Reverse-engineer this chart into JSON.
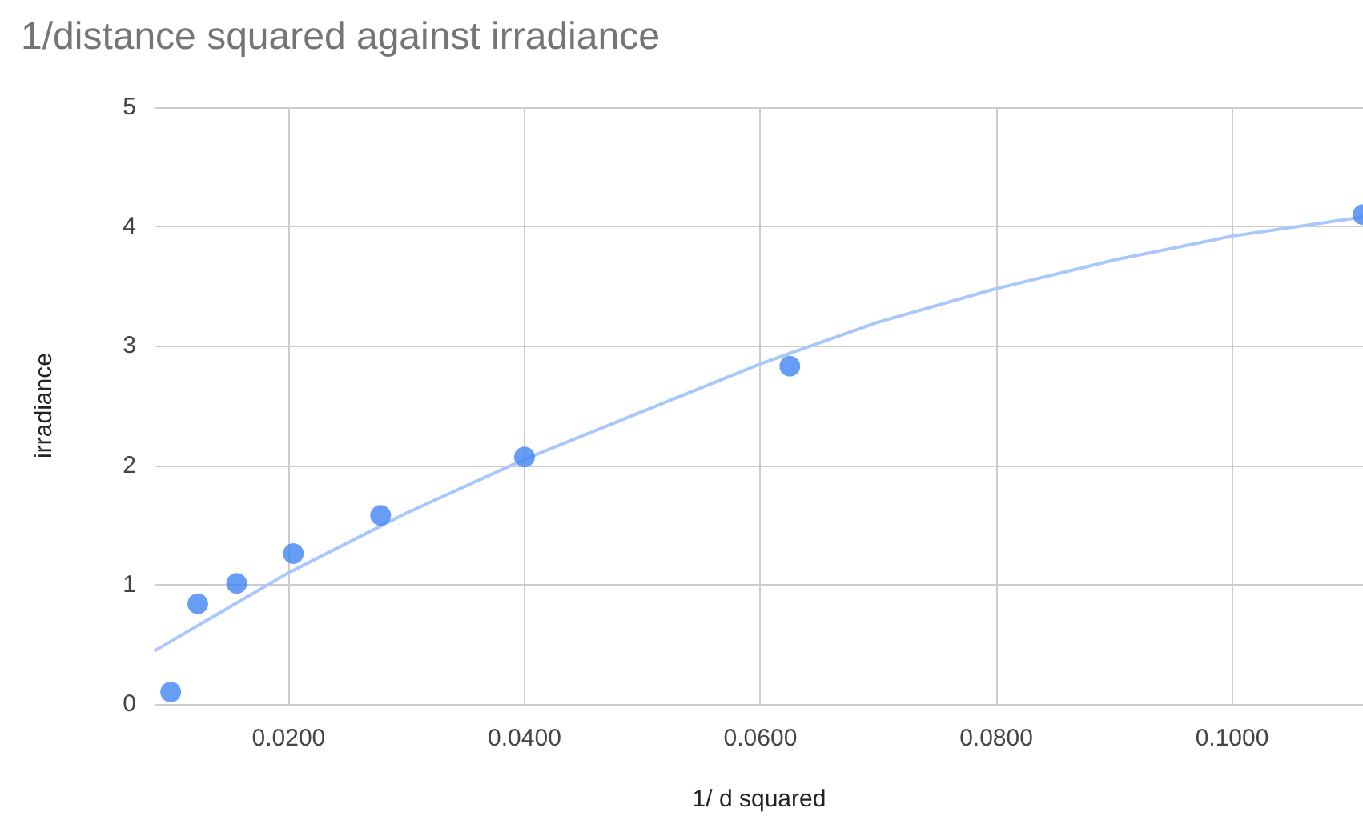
{
  "chart_data": {
    "type": "scatter",
    "title": "1/distance squared against irradiance",
    "xlabel": "1/ d squared",
    "ylabel": "irradiance",
    "xlim": [
      0.0087,
      0.1111
    ],
    "xticks": [
      {
        "value": 0.02,
        "label": "0.0200"
      },
      {
        "value": 0.04,
        "label": "0.0400"
      },
      {
        "value": 0.06,
        "label": "0.0600"
      },
      {
        "value": 0.08,
        "label": "0.0800"
      },
      {
        "value": 0.1,
        "label": "0.1000"
      }
    ],
    "ylim": [
      0,
      5
    ],
    "yticks": [
      0,
      1,
      2,
      3,
      4,
      5
    ],
    "grid": true,
    "series": [
      {
        "type": "line",
        "color": "#a8c7fa",
        "marker": "none",
        "line_style": "solid",
        "x": [
          0.0087,
          0.02,
          0.03,
          0.04,
          0.05,
          0.06,
          0.07,
          0.08,
          0.09,
          0.1,
          0.1111
        ],
        "values": [
          0.45,
          1.1,
          1.6,
          2.05,
          2.45,
          2.85,
          3.2,
          3.48,
          3.72,
          3.92,
          4.08
        ]
      },
      {
        "color": "#4285f4",
        "marker": "circle",
        "x": [
          0.01,
          0.0123,
          0.0156,
          0.0204,
          0.0278,
          0.04,
          0.0625,
          0.1111
        ],
        "values": [
          0.1,
          0.84,
          1.01,
          1.26,
          1.58,
          2.07,
          2.83,
          4.1
        ]
      }
    ]
  }
}
